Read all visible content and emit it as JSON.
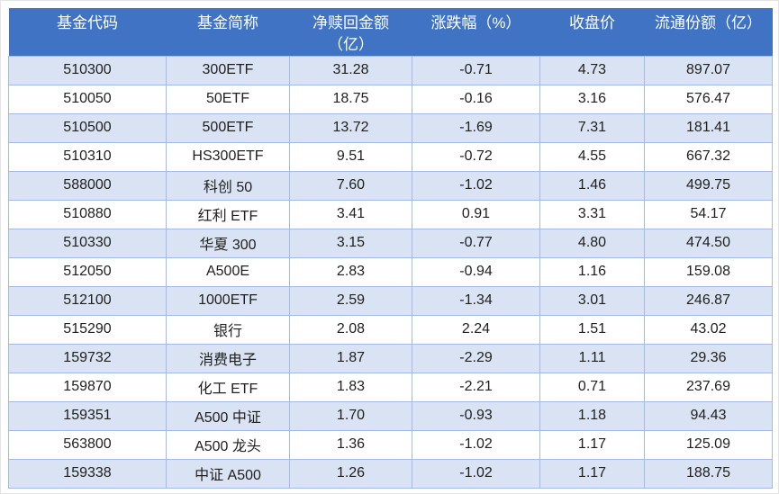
{
  "chart_data": {
    "type": "table",
    "title": "",
    "columns": [
      "基金代码",
      "基金简称",
      "净赎回金额\n（亿）",
      "涨跌幅（%）",
      "收盘价",
      "流通份额（亿）"
    ],
    "rows": [
      [
        "510300",
        "300ETF",
        "31.28",
        "-0.71",
        "4.73",
        "897.07"
      ],
      [
        "510050",
        "50ETF",
        "18.75",
        "-0.16",
        "3.16",
        "576.47"
      ],
      [
        "510500",
        "500ETF",
        "13.72",
        "-1.69",
        "7.31",
        "181.41"
      ],
      [
        "510310",
        "HS300ETF",
        "9.51",
        "-0.72",
        "4.55",
        "667.32"
      ],
      [
        "588000",
        "科创 50",
        "7.60",
        "-1.02",
        "1.46",
        "499.75"
      ],
      [
        "510880",
        "红利 ETF",
        "3.41",
        "0.91",
        "3.31",
        "54.17"
      ],
      [
        "510330",
        "华夏 300",
        "3.15",
        "-0.77",
        "4.80",
        "474.50"
      ],
      [
        "512050",
        "A500E",
        "2.83",
        "-0.94",
        "1.16",
        "159.08"
      ],
      [
        "512100",
        "1000ETF",
        "2.59",
        "-1.34",
        "3.01",
        "246.87"
      ],
      [
        "515290",
        "银行",
        "2.08",
        "2.24",
        "1.51",
        "43.02"
      ],
      [
        "159732",
        "消费电子",
        "1.87",
        "-2.29",
        "1.11",
        "29.36"
      ],
      [
        "159870",
        "化工 ETF",
        "1.83",
        "-2.21",
        "0.71",
        "237.69"
      ],
      [
        "159351",
        "A500 中证",
        "1.70",
        "-0.93",
        "1.18",
        "94.43"
      ],
      [
        "563800",
        "A500 龙头",
        "1.36",
        "-1.02",
        "1.17",
        "125.09"
      ],
      [
        "159338",
        "中证 A500",
        "1.26",
        "-1.02",
        "1.17",
        "188.75"
      ]
    ],
    "layout": {
      "banded_rows": true,
      "grid": true
    }
  },
  "colors": {
    "header_bg": "#4173c4",
    "header_text": "#ffffff",
    "stripe_row_bg": "#dae3f3",
    "plain_row_bg": "#ffffff",
    "grid_border": "#a3bbe2",
    "cell_text": "#1f1f1f"
  }
}
